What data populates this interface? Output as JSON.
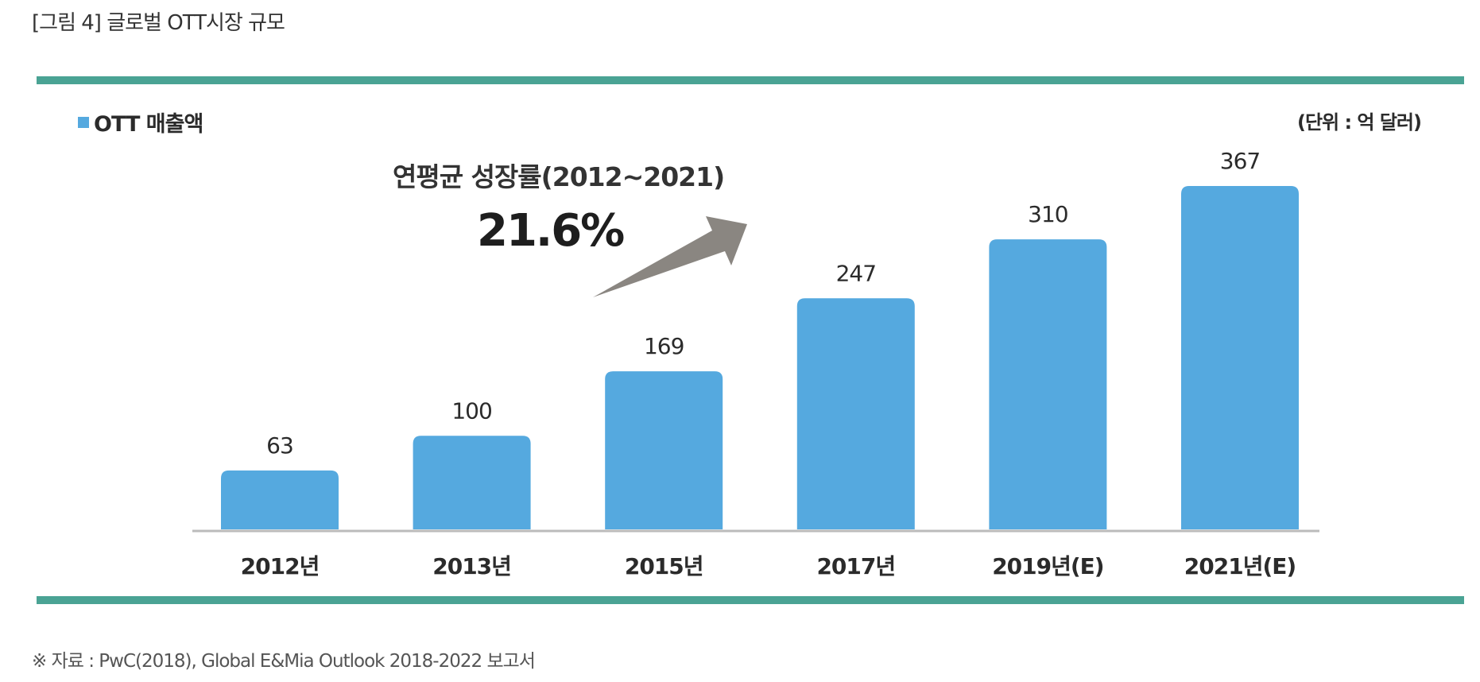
{
  "figure_title": "[그림 4] 글로벌 OTT시장 규모",
  "unit_label": "(단위 :  억 달러)",
  "cagr": {
    "label": "연평균 성장률(2012~2021)",
    "value": "21.6%"
  },
  "footnote": "※ 자료 : PwC(2018), Global E&Mia Outlook 2018-2022 보고서",
  "colors": {
    "bar": "#55A9DF",
    "rule": "#4AA394",
    "arrow": "#8A8681",
    "axis": "#BBBBBB"
  },
  "chart_data": {
    "type": "bar",
    "categories": [
      "2012년",
      "2013년",
      "2015년",
      "2017년",
      "2019년(E)",
      "2021년(E)"
    ],
    "series": [
      {
        "name": "OTT 매출액",
        "values": [
          63,
          100,
          169,
          247,
          310,
          367
        ]
      }
    ],
    "ylim": [
      0,
      367
    ],
    "grid": false,
    "legend_position": "top-left",
    "data_labels": true
  }
}
